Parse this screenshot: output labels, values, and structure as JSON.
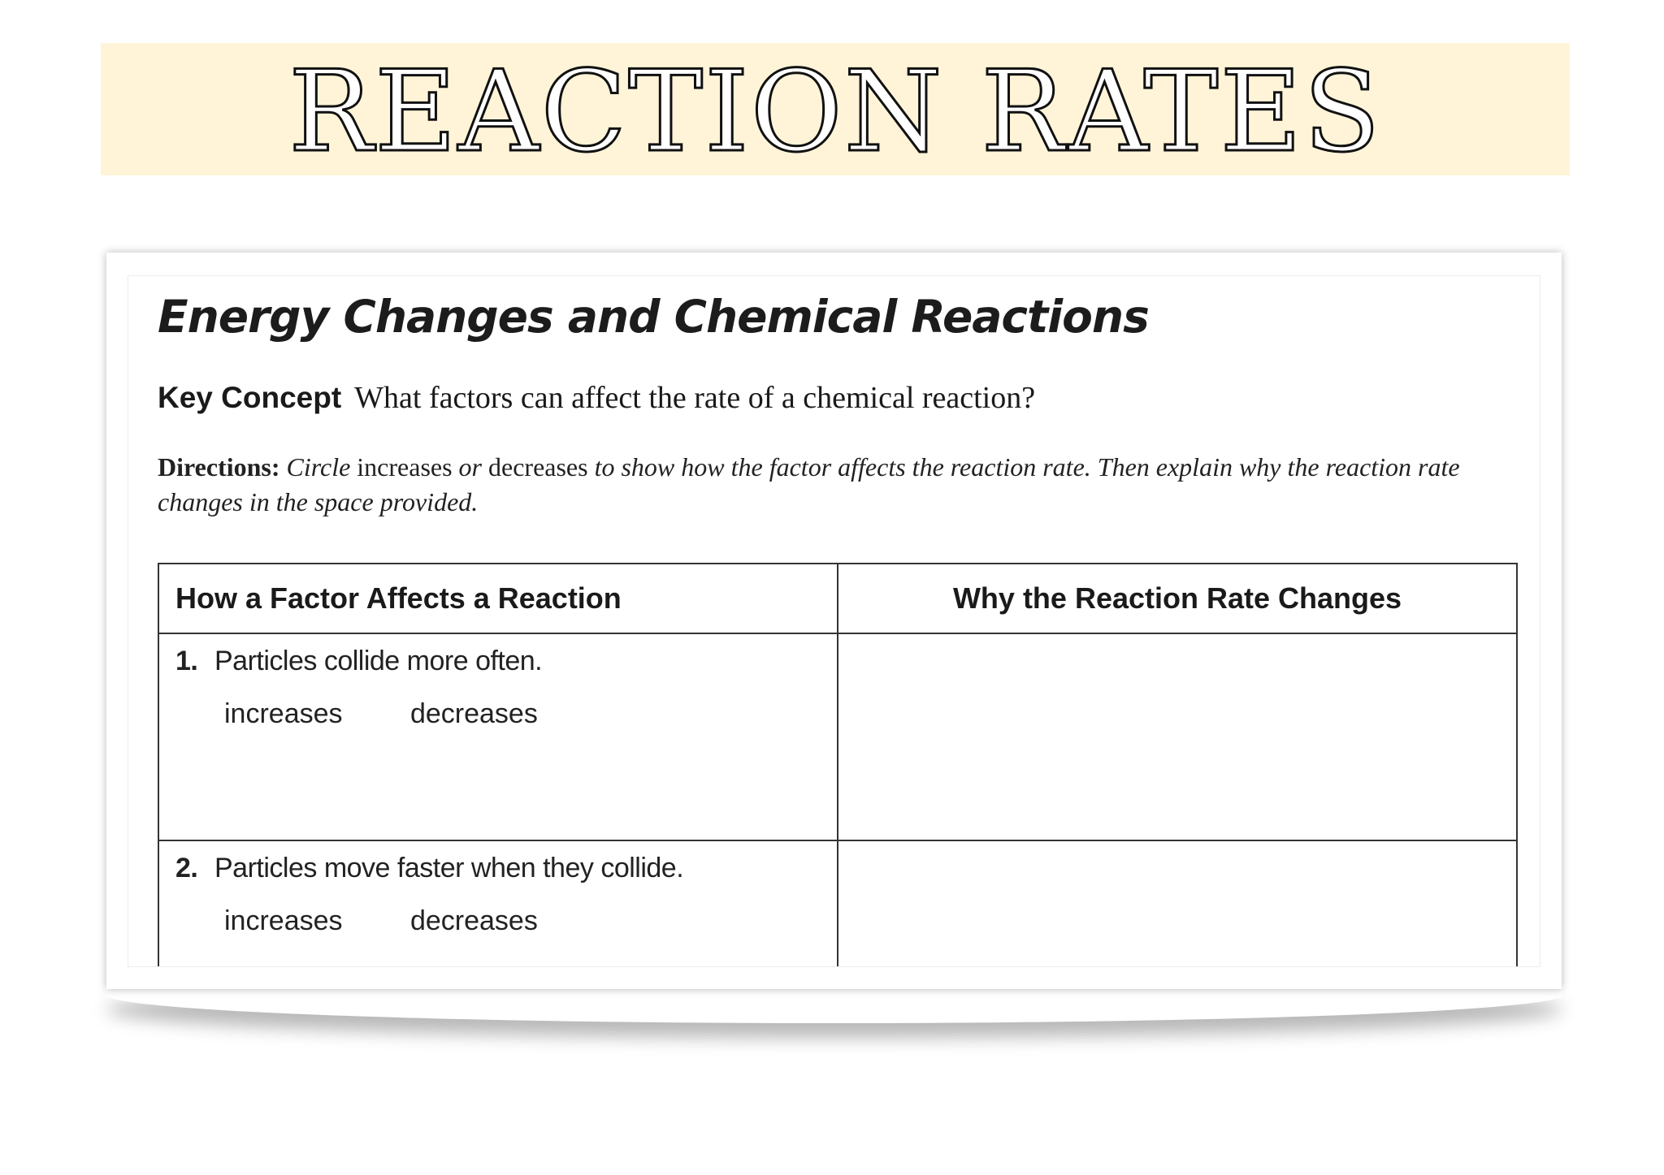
{
  "banner": {
    "title": "REACTION RATES",
    "background": "#fff4d8"
  },
  "worksheet": {
    "title": "Energy Changes and Chemical Reactions",
    "key_concept": {
      "label": "Key Concept",
      "text": "What factors can affect the rate of a chemical reaction?"
    },
    "directions": {
      "label": "Directions:",
      "part1": "Circle",
      "part2": "increases",
      "part3": "or",
      "part4": "decreases",
      "part5": "to show how the factor affects the reaction rate. Then explain why the reaction rate changes in the space provided."
    },
    "table": {
      "headers": [
        "How a Factor Affects a Reaction",
        "Why the Reaction Rate Changes"
      ],
      "rows": [
        {
          "number": "1.",
          "factor": "Particles collide more often.",
          "choices": [
            "increases",
            "decreases"
          ],
          "answer": ""
        },
        {
          "number": "2.",
          "factor": "Particles move faster when they collide.",
          "choices": [
            "increases",
            "decreases"
          ],
          "answer": ""
        }
      ]
    }
  }
}
